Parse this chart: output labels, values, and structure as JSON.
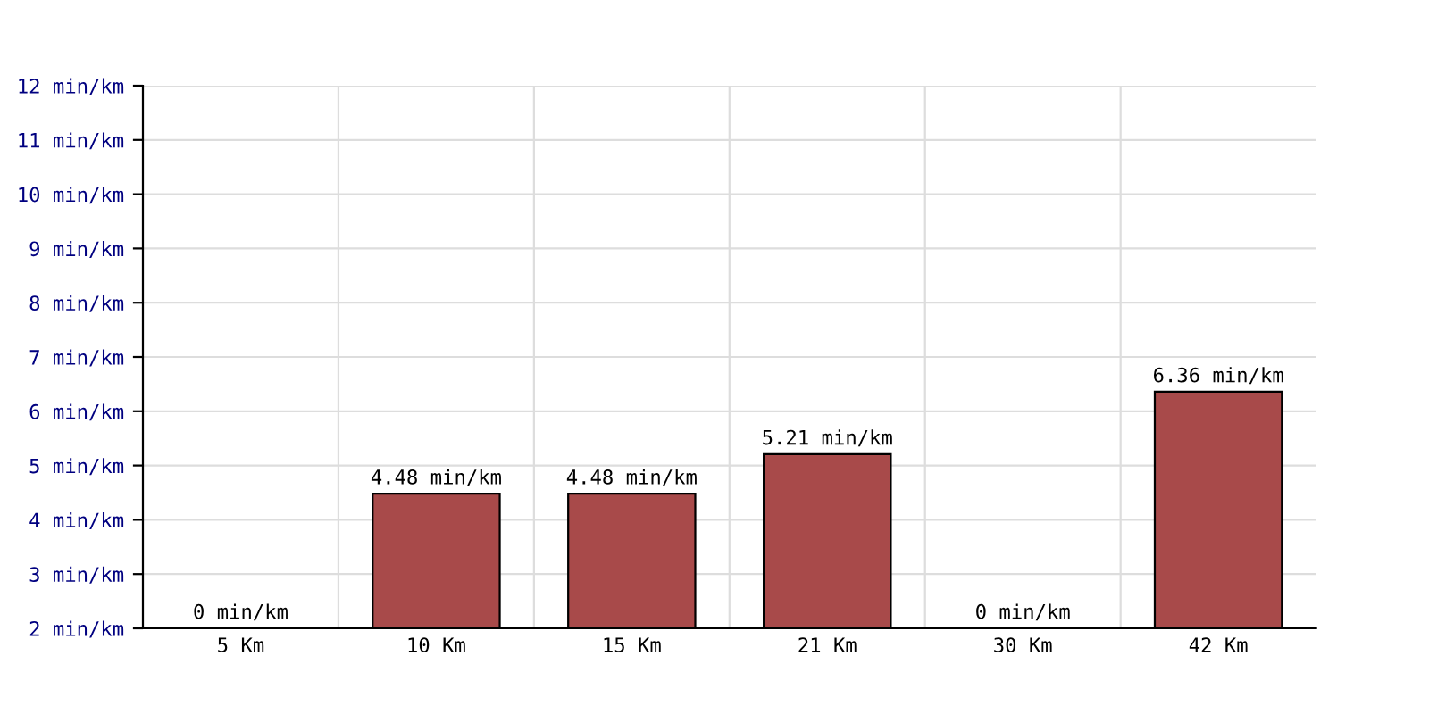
{
  "chart_data": {
    "type": "bar",
    "categories": [
      "5 Km",
      "10 Km",
      "15 Km",
      "21 Km",
      "30 Km",
      "42 Km"
    ],
    "values": [
      null,
      4.48,
      4.48,
      5.21,
      null,
      6.36
    ],
    "value_labels": [
      "0 min/km",
      "4.48 min/km",
      "4.48 min/km",
      "5.21 min/km",
      "0 min/km",
      "6.36 min/km"
    ],
    "color": "#a84a4a",
    "ylim": [
      2,
      12
    ],
    "yticks": [
      {
        "value": 2,
        "label": "2 min/km"
      },
      {
        "value": 3,
        "label": "3 min/km"
      },
      {
        "value": 4,
        "label": "4 min/km"
      },
      {
        "value": 5,
        "label": "5 min/km"
      },
      {
        "value": 6,
        "label": "6 min/km"
      },
      {
        "value": 7,
        "label": "7 min/km"
      },
      {
        "value": 8,
        "label": "8 min/km"
      },
      {
        "value": 9,
        "label": "9 min/km"
      },
      {
        "value": 10,
        "label": "10 min/km"
      },
      {
        "value": 11,
        "label": "11 min/km"
      },
      {
        "value": 12,
        "label": "12 min/km"
      }
    ],
    "grid": true
  }
}
